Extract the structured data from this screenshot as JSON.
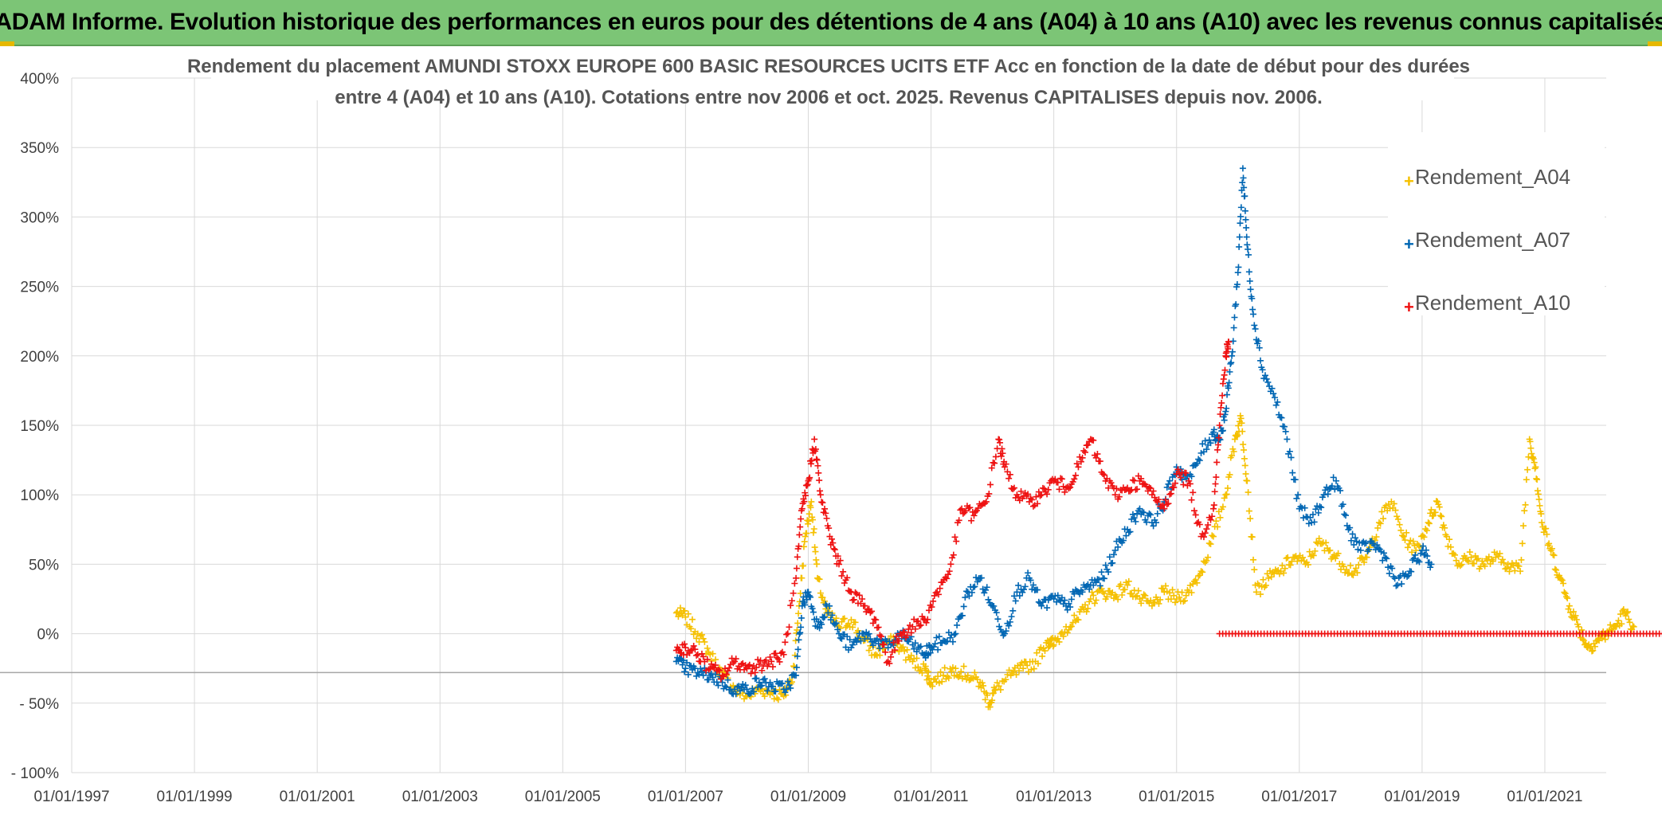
{
  "banner": {
    "title": "ADAM Informe. Evolution historique des performances en euros pour des détentions de 4 ans (A04) à 10 ans (A10) avec les revenus connus capitalisés"
  },
  "colors": {
    "banner_bg": "#7cc576",
    "A04": "#f5c000",
    "A07": "#0066b3",
    "A10": "#ee1111",
    "grid": "#d9d9d9",
    "axis_line": "#a6a6a6"
  },
  "chart_data": {
    "type": "scatter",
    "title_line1": "Rendement du placement AMUNDI STOXX EUROPE 600 BASIC RESOURCES UCITS ETF Acc en fonction de la date de début pour des durées",
    "title_line2": "entre 4 (A04) et 10 ans (A10). Cotations entre nov 2006 et oct. 2025. Revenus CAPITALISES depuis nov. 2006.",
    "xlabel": "",
    "ylabel": "",
    "x_range": [
      1997.0,
      2022.0
    ],
    "ylim": [
      -100,
      400
    ],
    "x_ticks": [
      1997,
      1999,
      2001,
      2003,
      2005,
      2007,
      2009,
      2011,
      2013,
      2015,
      2017,
      2019,
      2021
    ],
    "x_tick_labels": [
      "01/01/1997",
      "01/01/1999",
      "01/01/2001",
      "01/01/2003",
      "01/01/2005",
      "01/01/2007",
      "01/01/2009",
      "01/01/2011",
      "01/01/2013",
      "01/01/2015",
      "01/01/2017",
      "01/01/2019",
      "01/01/2021"
    ],
    "y_ticks": [
      -100,
      -50,
      0,
      50,
      100,
      150,
      200,
      250,
      300,
      350,
      400
    ],
    "y_tick_labels": [
      "- 100%",
      "- 50%",
      "0%",
      "50%",
      "100%",
      "150%",
      "200%",
      "250%",
      "300%",
      "350%",
      "400%"
    ],
    "grid": true,
    "legend_position": "top-right",
    "series": [
      {
        "name": "Rendement_A04",
        "color": "#f5c000",
        "marker": "+",
        "points": [
          [
            2006.85,
            15
          ],
          [
            2007.0,
            12
          ],
          [
            2007.2,
            0
          ],
          [
            2007.4,
            -15
          ],
          [
            2007.6,
            -30
          ],
          [
            2007.8,
            -40
          ],
          [
            2008.0,
            -45
          ],
          [
            2008.2,
            -40
          ],
          [
            2008.4,
            -42
          ],
          [
            2008.6,
            -45
          ],
          [
            2008.75,
            -30
          ],
          [
            2008.85,
            20
          ],
          [
            2008.95,
            70
          ],
          [
            2009.05,
            95
          ],
          [
            2009.15,
            40
          ],
          [
            2009.3,
            15
          ],
          [
            2009.5,
            5
          ],
          [
            2009.7,
            10
          ],
          [
            2009.9,
            -5
          ],
          [
            2010.1,
            -15
          ],
          [
            2010.3,
            -5
          ],
          [
            2010.5,
            -10
          ],
          [
            2010.7,
            -20
          ],
          [
            2010.9,
            -25
          ],
          [
            2011.0,
            -35
          ],
          [
            2011.2,
            -30
          ],
          [
            2011.4,
            -25
          ],
          [
            2011.6,
            -30
          ],
          [
            2011.8,
            -35
          ],
          [
            2011.95,
            -50
          ],
          [
            2012.05,
            -40
          ],
          [
            2012.3,
            -30
          ],
          [
            2012.5,
            -25
          ],
          [
            2012.7,
            -20
          ],
          [
            2012.9,
            -5
          ],
          [
            2013.0,
            -8
          ],
          [
            2013.2,
            5
          ],
          [
            2013.4,
            10
          ],
          [
            2013.6,
            25
          ],
          [
            2013.8,
            30
          ],
          [
            2014.0,
            28
          ],
          [
            2014.2,
            35
          ],
          [
            2014.4,
            25
          ],
          [
            2014.6,
            20
          ],
          [
            2014.8,
            30
          ],
          [
            2015.0,
            25
          ],
          [
            2015.2,
            30
          ],
          [
            2015.4,
            45
          ],
          [
            2015.6,
            70
          ],
          [
            2015.8,
            100
          ],
          [
            2015.95,
            140
          ],
          [
            2016.05,
            155
          ],
          [
            2016.15,
            110
          ],
          [
            2016.3,
            30
          ],
          [
            2016.5,
            40
          ],
          [
            2016.7,
            45
          ],
          [
            2016.9,
            55
          ],
          [
            2017.1,
            50
          ],
          [
            2017.3,
            65
          ],
          [
            2017.5,
            60
          ],
          [
            2017.7,
            50
          ],
          [
            2017.9,
            45
          ],
          [
            2018.1,
            55
          ],
          [
            2018.3,
            80
          ],
          [
            2018.5,
            95
          ],
          [
            2018.7,
            70
          ],
          [
            2018.9,
            60
          ],
          [
            2019.1,
            80
          ],
          [
            2019.25,
            95
          ],
          [
            2019.4,
            70
          ],
          [
            2019.6,
            50
          ],
          [
            2019.8,
            55
          ],
          [
            2020.0,
            50
          ],
          [
            2020.2,
            55
          ],
          [
            2020.4,
            50
          ],
          [
            2020.6,
            45
          ],
          [
            2020.75,
            140
          ],
          [
            2020.85,
            120
          ],
          [
            2020.95,
            80
          ],
          [
            2021.1,
            60
          ],
          [
            2021.25,
            40
          ],
          [
            2021.4,
            20
          ],
          [
            2021.55,
            5
          ],
          [
            2021.7,
            -10
          ],
          [
            2021.85,
            -5
          ],
          [
            2022.0,
            0
          ],
          [
            2022.15,
            5
          ],
          [
            2022.3,
            15
          ],
          [
            2022.45,
            5
          ]
        ]
      },
      {
        "name": "Rendement_A07",
        "color": "#0066b3",
        "marker": "+",
        "points": [
          [
            2006.85,
            -20
          ],
          [
            2007.0,
            -25
          ],
          [
            2007.2,
            -28
          ],
          [
            2007.4,
            -30
          ],
          [
            2007.6,
            -35
          ],
          [
            2007.8,
            -40
          ],
          [
            2008.0,
            -40
          ],
          [
            2008.2,
            -35
          ],
          [
            2008.4,
            -38
          ],
          [
            2008.6,
            -40
          ],
          [
            2008.8,
            -30
          ],
          [
            2008.9,
            20
          ],
          [
            2009.0,
            30
          ],
          [
            2009.15,
            5
          ],
          [
            2009.3,
            20
          ],
          [
            2009.5,
            0
          ],
          [
            2009.7,
            -10
          ],
          [
            2009.9,
            0
          ],
          [
            2010.1,
            -5
          ],
          [
            2010.3,
            -10
          ],
          [
            2010.5,
            0
          ],
          [
            2010.7,
            -8
          ],
          [
            2010.9,
            -15
          ],
          [
            2011.0,
            -10
          ],
          [
            2011.2,
            -5
          ],
          [
            2011.4,
            0
          ],
          [
            2011.6,
            30
          ],
          [
            2011.8,
            40
          ],
          [
            2012.0,
            20
          ],
          [
            2012.2,
            0
          ],
          [
            2012.4,
            30
          ],
          [
            2012.6,
            40
          ],
          [
            2012.8,
            20
          ],
          [
            2013.0,
            25
          ],
          [
            2013.2,
            20
          ],
          [
            2013.4,
            30
          ],
          [
            2013.6,
            35
          ],
          [
            2013.8,
            40
          ],
          [
            2014.0,
            60
          ],
          [
            2014.2,
            75
          ],
          [
            2014.4,
            90
          ],
          [
            2014.6,
            80
          ],
          [
            2014.8,
            95
          ],
          [
            2015.0,
            120
          ],
          [
            2015.2,
            110
          ],
          [
            2015.4,
            130
          ],
          [
            2015.6,
            145
          ],
          [
            2015.7,
            140
          ],
          [
            2015.8,
            160
          ],
          [
            2015.9,
            200
          ],
          [
            2016.0,
            260
          ],
          [
            2016.08,
            335
          ],
          [
            2016.15,
            280
          ],
          [
            2016.25,
            230
          ],
          [
            2016.4,
            190
          ],
          [
            2016.6,
            170
          ],
          [
            2016.8,
            140
          ],
          [
            2017.0,
            90
          ],
          [
            2017.2,
            80
          ],
          [
            2017.4,
            100
          ],
          [
            2017.6,
            110
          ],
          [
            2017.8,
            75
          ],
          [
            2018.0,
            60
          ],
          [
            2018.2,
            65
          ],
          [
            2018.4,
            55
          ],
          [
            2018.6,
            35
          ],
          [
            2018.8,
            45
          ],
          [
            2019.0,
            60
          ],
          [
            2019.15,
            50
          ]
        ]
      },
      {
        "name": "Rendement_A10",
        "color": "#ee1111",
        "marker": "+",
        "points": [
          [
            2006.85,
            -12
          ],
          [
            2007.0,
            -10
          ],
          [
            2007.2,
            -15
          ],
          [
            2007.4,
            -25
          ],
          [
            2007.6,
            -30
          ],
          [
            2007.8,
            -20
          ],
          [
            2008.0,
            -25
          ],
          [
            2008.2,
            -22
          ],
          [
            2008.4,
            -20
          ],
          [
            2008.6,
            -15
          ],
          [
            2008.8,
            40
          ],
          [
            2008.9,
            90
          ],
          [
            2009.0,
            110
          ],
          [
            2009.1,
            140
          ],
          [
            2009.2,
            100
          ],
          [
            2009.35,
            70
          ],
          [
            2009.5,
            50
          ],
          [
            2009.7,
            30
          ],
          [
            2009.9,
            20
          ],
          [
            2010.1,
            10
          ],
          [
            2010.3,
            -20
          ],
          [
            2010.5,
            0
          ],
          [
            2010.7,
            5
          ],
          [
            2010.9,
            10
          ],
          [
            2011.1,
            30
          ],
          [
            2011.3,
            45
          ],
          [
            2011.5,
            90
          ],
          [
            2011.7,
            85
          ],
          [
            2011.9,
            95
          ],
          [
            2012.1,
            140
          ],
          [
            2012.2,
            120
          ],
          [
            2012.4,
            100
          ],
          [
            2012.6,
            95
          ],
          [
            2012.8,
            100
          ],
          [
            2013.0,
            110
          ],
          [
            2013.2,
            105
          ],
          [
            2013.4,
            120
          ],
          [
            2013.6,
            140
          ],
          [
            2013.8,
            115
          ],
          [
            2014.0,
            100
          ],
          [
            2014.2,
            105
          ],
          [
            2014.4,
            110
          ],
          [
            2014.6,
            100
          ],
          [
            2014.8,
            90
          ],
          [
            2015.0,
            115
          ],
          [
            2015.2,
            110
          ],
          [
            2015.4,
            70
          ],
          [
            2015.6,
            90
          ],
          [
            2015.7,
            150
          ],
          [
            2015.8,
            200
          ],
          [
            2015.85,
            210
          ]
        ],
        "flat_segment": {
          "x_start": 2015.7,
          "x_end": 2022.95,
          "y": 0
        }
      }
    ]
  }
}
